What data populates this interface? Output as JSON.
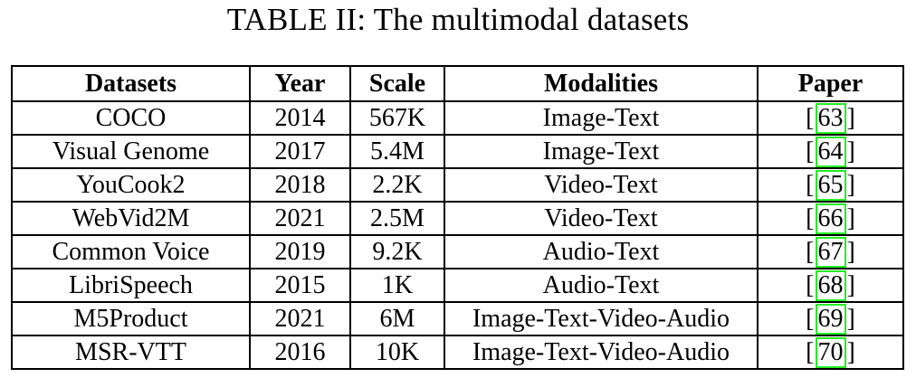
{
  "caption": "TABLE II: The multimodal datasets",
  "table": {
    "headers": [
      "Datasets",
      "Year",
      "Scale",
      "Modalities",
      "Paper"
    ],
    "rows": [
      {
        "dataset": "COCO",
        "year": "2014",
        "scale": "567K",
        "modalities": "Image-Text",
        "paper": "63"
      },
      {
        "dataset": "Visual Genome",
        "year": "2017",
        "scale": "5.4M",
        "modalities": "Image-Text",
        "paper": "64"
      },
      {
        "dataset": "YouCook2",
        "year": "2018",
        "scale": "2.2K",
        "modalities": "Video-Text",
        "paper": "65"
      },
      {
        "dataset": "WebVid2M",
        "year": "2021",
        "scale": "2.5M",
        "modalities": "Video-Text",
        "paper": "66"
      },
      {
        "dataset": "Common Voice",
        "year": "2019",
        "scale": "9.2K",
        "modalities": "Audio-Text",
        "paper": "67"
      },
      {
        "dataset": "LibriSpeech",
        "year": "2015",
        "scale": "1K",
        "modalities": "Audio-Text",
        "paper": "68"
      },
      {
        "dataset": "M5Product",
        "year": "2021",
        "scale": "6M",
        "modalities": "Image-Text-Video-Audio",
        "paper": "69"
      },
      {
        "dataset": "MSR-VTT",
        "year": "2016",
        "scale": "10K",
        "modalities": "Image-Text-Video-Audio",
        "paper": "70"
      }
    ]
  },
  "colors": {
    "text": "#000000",
    "border": "#000000",
    "citation_box": "#22ee22",
    "background": "#ffffff"
  }
}
